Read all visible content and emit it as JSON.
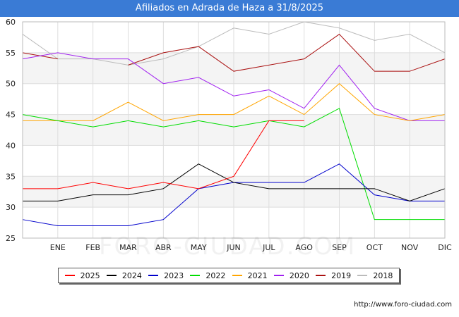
{
  "header": {
    "title": "Afiliados en Adrada de Haza a 31/8/2025"
  },
  "footer": {
    "source": "http://www.foro-ciudad.com",
    "watermark": "FORO-CIUDAD.COM"
  },
  "chart_data": {
    "type": "line",
    "title": "Afiliados en Adrada de Haza a 31/8/2025",
    "xlabel": "",
    "ylabel": "",
    "ylim": [
      25,
      60
    ],
    "yticks": [
      25,
      30,
      35,
      40,
      45,
      50,
      55,
      60
    ],
    "grid": true,
    "legend_position": "bottom",
    "categories": [
      "",
      "ENE",
      "FEB",
      "MAR",
      "ABR",
      "MAY",
      "JUN",
      "JUL",
      "AGO",
      "SEP",
      "OCT",
      "NOV",
      "DIC"
    ],
    "series": [
      {
        "name": "2025",
        "color": "#ff0000",
        "values": [
          33,
          33,
          34,
          33,
          34,
          33,
          35,
          44,
          44,
          null,
          null,
          null,
          null
        ]
      },
      {
        "name": "2024",
        "color": "#000000",
        "values": [
          31,
          31,
          32,
          32,
          33,
          37,
          34,
          33,
          33,
          33,
          33,
          31,
          33
        ]
      },
      {
        "name": "2023",
        "color": "#0000cc",
        "values": [
          28,
          27,
          27,
          27,
          28,
          33,
          34,
          34,
          34,
          37,
          32,
          31,
          31
        ]
      },
      {
        "name": "2022",
        "color": "#00dd00",
        "values": [
          45,
          44,
          43,
          44,
          43,
          44,
          43,
          44,
          43,
          46,
          28,
          28,
          28
        ]
      },
      {
        "name": "2021",
        "color": "#ffa500",
        "values": [
          44,
          44,
          44,
          47,
          44,
          45,
          45,
          48,
          45,
          50,
          45,
          44,
          45
        ]
      },
      {
        "name": "2020",
        "color": "#a020f0",
        "values": [
          54,
          55,
          54,
          54,
          50,
          51,
          48,
          49,
          46,
          53,
          46,
          44,
          44
        ]
      },
      {
        "name": "2019",
        "color": "#aa1111",
        "values": [
          55,
          54,
          null,
          53,
          55,
          56,
          52,
          53,
          54,
          58,
          52,
          52,
          54
        ]
      },
      {
        "name": "2018",
        "color": "#bbbbbb",
        "values": [
          58,
          54,
          54,
          53,
          54,
          56,
          59,
          58,
          60,
          59,
          57,
          58,
          55
        ]
      }
    ]
  }
}
